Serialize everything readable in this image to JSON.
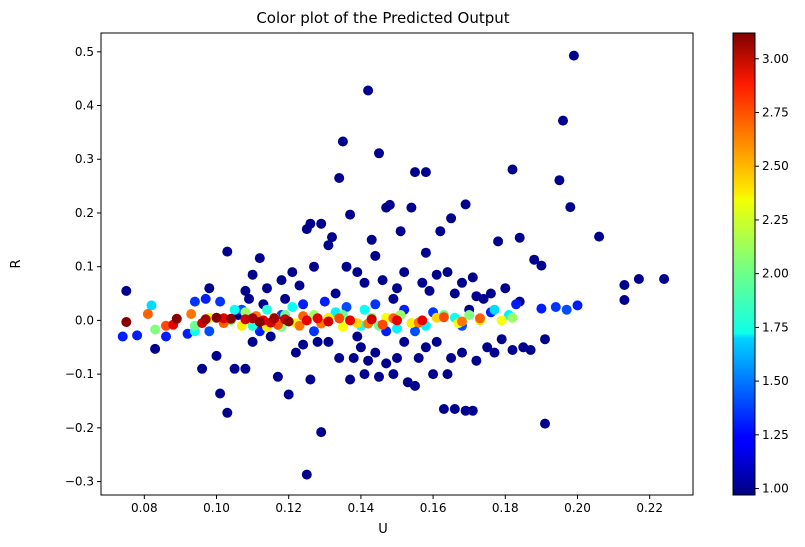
{
  "chart_data": {
    "type": "scatter",
    "title": "Color plot of the Predicted Output",
    "xlabel": "U",
    "ylabel": "R",
    "xlim": [
      0.068,
      0.232
    ],
    "ylim": [
      -0.325,
      0.535
    ],
    "xticks": [
      "0.08",
      "0.10",
      "0.12",
      "0.14",
      "0.16",
      "0.18",
      "0.20",
      "0.22"
    ],
    "yticks": [
      "-0.3",
      "-0.2",
      "-0.1",
      "0.0",
      "0.1",
      "0.2",
      "0.3",
      "0.4",
      "0.5"
    ],
    "grid": false,
    "colormap": "jet",
    "colorbar": {
      "range": [
        0.97,
        3.12
      ],
      "ticks": [
        "1.00",
        "1.25",
        "1.50",
        "1.75",
        "2.00",
        "2.25",
        "2.50",
        "2.75",
        "3.00"
      ]
    },
    "points": [
      [
        0.075,
        0.055,
        1.0
      ],
      [
        0.098,
        0.06,
        1.0
      ],
      [
        0.103,
        0.128,
        1.0
      ],
      [
        0.106,
        0.01,
        1.0
      ],
      [
        0.108,
        0.055,
        1.0
      ],
      [
        0.11,
        0.085,
        1.0
      ],
      [
        0.112,
        0.116,
        1.0
      ],
      [
        0.114,
        0.06,
        1.0
      ],
      [
        0.118,
        0.075,
        1.0
      ],
      [
        0.121,
        0.09,
        1.0
      ],
      [
        0.123,
        0.065,
        1.0
      ],
      [
        0.125,
        0.17,
        1.0
      ],
      [
        0.126,
        0.18,
        1.0
      ],
      [
        0.127,
        0.1,
        1.0
      ],
      [
        0.129,
        0.18,
        1.0
      ],
      [
        0.131,
        0.14,
        1.0
      ],
      [
        0.132,
        0.155,
        1.0
      ],
      [
        0.134,
        0.265,
        1.0
      ],
      [
        0.135,
        0.333,
        1.0
      ],
      [
        0.136,
        0.1,
        1.0
      ],
      [
        0.137,
        0.197,
        1.0
      ],
      [
        0.139,
        0.09,
        1.0
      ],
      [
        0.141,
        0.07,
        1.0
      ],
      [
        0.142,
        0.428,
        1.0
      ],
      [
        0.143,
        0.15,
        1.0
      ],
      [
        0.144,
        0.12,
        1.0
      ],
      [
        0.145,
        0.311,
        1.0
      ],
      [
        0.146,
        0.075,
        1.0
      ],
      [
        0.147,
        0.21,
        1.0
      ],
      [
        0.148,
        0.215,
        1.0
      ],
      [
        0.15,
        0.06,
        1.0
      ],
      [
        0.151,
        0.166,
        1.0
      ],
      [
        0.152,
        0.09,
        1.0
      ],
      [
        0.154,
        0.21,
        1.0
      ],
      [
        0.155,
        0.276,
        1.0
      ],
      [
        0.157,
        0.07,
        1.0
      ],
      [
        0.158,
        0.276,
        1.0
      ],
      [
        0.158,
        0.126,
        1.0
      ],
      [
        0.161,
        0.085,
        1.0
      ],
      [
        0.162,
        0.166,
        1.0
      ],
      [
        0.164,
        0.09,
        1.0
      ],
      [
        0.165,
        0.19,
        1.0
      ],
      [
        0.166,
        0.05,
        1.0
      ],
      [
        0.168,
        0.07,
        1.0
      ],
      [
        0.169,
        0.216,
        1.0
      ],
      [
        0.171,
        0.08,
        1.0
      ],
      [
        0.172,
        0.045,
        1.0
      ],
      [
        0.174,
        0.04,
        1.0
      ],
      [
        0.176,
        0.05,
        1.0
      ],
      [
        0.178,
        0.147,
        1.0
      ],
      [
        0.18,
        0.06,
        1.0
      ],
      [
        0.182,
        0.281,
        1.0
      ],
      [
        0.184,
        0.154,
        1.0
      ],
      [
        0.188,
        0.113,
        1.0
      ],
      [
        0.19,
        0.102,
        1.0
      ],
      [
        0.195,
        0.261,
        1.0
      ],
      [
        0.196,
        0.372,
        1.0
      ],
      [
        0.198,
        0.211,
        1.0
      ],
      [
        0.199,
        0.493,
        1.0
      ],
      [
        0.206,
        0.156,
        1.0
      ],
      [
        0.213,
        0.066,
        1.0
      ],
      [
        0.213,
        0.038,
        1.0
      ],
      [
        0.217,
        0.077,
        1.0
      ],
      [
        0.224,
        0.077,
        1.0
      ],
      [
        0.184,
        0.035,
        1.0
      ],
      [
        0.083,
        -0.053,
        1.0
      ],
      [
        0.096,
        -0.09,
        1.0
      ],
      [
        0.1,
        -0.066,
        1.0
      ],
      [
        0.101,
        -0.136,
        1.0
      ],
      [
        0.103,
        -0.172,
        1.0
      ],
      [
        0.105,
        -0.09,
        1.0
      ],
      [
        0.108,
        -0.09,
        1.0
      ],
      [
        0.11,
        -0.04,
        1.0
      ],
      [
        0.117,
        -0.105,
        1.0
      ],
      [
        0.12,
        -0.138,
        1.0
      ],
      [
        0.122,
        -0.06,
        1.0
      ],
      [
        0.124,
        -0.045,
        1.0
      ],
      [
        0.125,
        -0.287,
        1.0
      ],
      [
        0.126,
        -0.11,
        1.0
      ],
      [
        0.128,
        -0.04,
        1.0
      ],
      [
        0.129,
        -0.208,
        1.0
      ],
      [
        0.131,
        -0.04,
        1.0
      ],
      [
        0.134,
        -0.07,
        1.0
      ],
      [
        0.137,
        -0.11,
        1.0
      ],
      [
        0.138,
        -0.07,
        1.0
      ],
      [
        0.14,
        -0.05,
        1.0
      ],
      [
        0.141,
        -0.1,
        1.0
      ],
      [
        0.142,
        -0.075,
        1.0
      ],
      [
        0.144,
        -0.06,
        1.0
      ],
      [
        0.145,
        -0.105,
        1.0
      ],
      [
        0.147,
        -0.08,
        1.0
      ],
      [
        0.149,
        -0.1,
        1.0
      ],
      [
        0.15,
        -0.07,
        1.0
      ],
      [
        0.152,
        -0.04,
        1.0
      ],
      [
        0.153,
        -0.115,
        1.0
      ],
      [
        0.155,
        -0.122,
        1.0
      ],
      [
        0.156,
        -0.07,
        1.0
      ],
      [
        0.158,
        -0.05,
        1.0
      ],
      [
        0.16,
        -0.1,
        1.0
      ],
      [
        0.163,
        -0.165,
        1.0
      ],
      [
        0.164,
        -0.1,
        1.0
      ],
      [
        0.165,
        -0.07,
        1.0
      ],
      [
        0.166,
        -0.165,
        1.0
      ],
      [
        0.168,
        -0.06,
        1.0
      ],
      [
        0.169,
        -0.168,
        1.0
      ],
      [
        0.171,
        -0.168,
        1.0
      ],
      [
        0.172,
        -0.075,
        1.0
      ],
      [
        0.175,
        -0.05,
        1.0
      ],
      [
        0.177,
        -0.06,
        1.0
      ],
      [
        0.179,
        -0.035,
        1.0
      ],
      [
        0.182,
        -0.055,
        1.0
      ],
      [
        0.185,
        -0.05,
        1.0
      ],
      [
        0.187,
        -0.055,
        1.0
      ],
      [
        0.191,
        -0.035,
        1.0
      ],
      [
        0.191,
        -0.192,
        1.0
      ],
      [
        0.109,
        0.04,
        1.0
      ],
      [
        0.113,
        0.03,
        1.0
      ],
      [
        0.119,
        0.04,
        1.0
      ],
      [
        0.133,
        0.05,
        1.0
      ],
      [
        0.149,
        0.04,
        1.0
      ],
      [
        0.159,
        0.055,
        1.0
      ],
      [
        0.17,
        0.02,
        1.0
      ],
      [
        0.115,
        -0.03,
        1.0
      ],
      [
        0.139,
        -0.03,
        1.0
      ],
      [
        0.161,
        -0.04,
        1.0
      ],
      [
        0.074,
        -0.03,
        1.3
      ],
      [
        0.078,
        -0.028,
        1.3
      ],
      [
        0.086,
        -0.03,
        1.3
      ],
      [
        0.092,
        -0.025,
        1.3
      ],
      [
        0.094,
        0.035,
        1.35
      ],
      [
        0.097,
        0.04,
        1.3
      ],
      [
        0.101,
        0.035,
        1.35
      ],
      [
        0.107,
        0.02,
        1.4
      ],
      [
        0.118,
        0.01,
        1.35
      ],
      [
        0.124,
        0.03,
        1.3
      ],
      [
        0.13,
        0.035,
        1.3
      ],
      [
        0.136,
        0.025,
        1.4
      ],
      [
        0.144,
        0.03,
        1.35
      ],
      [
        0.152,
        0.02,
        1.3
      ],
      [
        0.16,
        0.015,
        1.35
      ],
      [
        0.168,
        -0.01,
        1.4
      ],
      [
        0.176,
        0.015,
        1.3
      ],
      [
        0.183,
        0.03,
        1.3
      ],
      [
        0.19,
        0.022,
        1.3
      ],
      [
        0.194,
        0.025,
        1.35
      ],
      [
        0.197,
        0.02,
        1.4
      ],
      [
        0.2,
        0.028,
        1.3
      ],
      [
        0.112,
        -0.02,
        1.3
      ],
      [
        0.127,
        -0.02,
        1.35
      ],
      [
        0.147,
        -0.02,
        1.3
      ],
      [
        0.098,
        -0.02,
        1.4
      ],
      [
        0.155,
        -0.02,
        1.4
      ],
      [
        0.082,
        0.028,
        1.7
      ],
      [
        0.105,
        0.02,
        1.8
      ],
      [
        0.114,
        0.02,
        1.85
      ],
      [
        0.121,
        0.025,
        1.8
      ],
      [
        0.133,
        0.015,
        1.75
      ],
      [
        0.141,
        0.02,
        1.8
      ],
      [
        0.158,
        -0.01,
        1.75
      ],
      [
        0.166,
        0.005,
        1.8
      ],
      [
        0.177,
        0.02,
        1.7
      ],
      [
        0.181,
        0.01,
        1.75
      ],
      [
        0.11,
        -0.01,
        1.85
      ],
      [
        0.14,
        -0.01,
        1.8
      ],
      [
        0.15,
        -0.015,
        1.75
      ],
      [
        0.094,
        -0.02,
        1.8
      ],
      [
        0.083,
        -0.017,
        2.05
      ],
      [
        0.094,
        -0.01,
        2.0
      ],
      [
        0.104,
        0.0,
        2.05
      ],
      [
        0.108,
        0.015,
        2.1
      ],
      [
        0.119,
        0.01,
        2.0
      ],
      [
        0.127,
        0.01,
        2.1
      ],
      [
        0.135,
        0.01,
        2.0
      ],
      [
        0.143,
        0.005,
        2.05
      ],
      [
        0.151,
        0.01,
        2.1
      ],
      [
        0.163,
        0.01,
        2.0
      ],
      [
        0.17,
        0.01,
        2.05
      ],
      [
        0.182,
        0.005,
        2.1
      ],
      [
        0.145,
        -0.01,
        2.0
      ],
      [
        0.118,
        -0.012,
        2.05
      ],
      [
        0.098,
        0.005,
        2.3
      ],
      [
        0.107,
        -0.01,
        2.35
      ],
      [
        0.116,
        0.005,
        2.4
      ],
      [
        0.122,
        -0.005,
        2.3
      ],
      [
        0.131,
        0.005,
        2.35
      ],
      [
        0.139,
        -0.005,
        2.4
      ],
      [
        0.147,
        0.005,
        2.3
      ],
      [
        0.154,
        -0.005,
        2.35
      ],
      [
        0.161,
        0.005,
        2.4
      ],
      [
        0.167,
        -0.005,
        2.3
      ],
      [
        0.173,
        0.0,
        2.35
      ],
      [
        0.179,
        0.0,
        2.3
      ],
      [
        0.114,
        -0.012,
        2.35
      ],
      [
        0.135,
        -0.012,
        2.3
      ],
      [
        0.081,
        0.012,
        2.65
      ],
      [
        0.086,
        -0.01,
        2.7
      ],
      [
        0.093,
        0.012,
        2.6
      ],
      [
        0.102,
        -0.005,
        2.65
      ],
      [
        0.111,
        0.008,
        2.6
      ],
      [
        0.117,
        -0.008,
        2.7
      ],
      [
        0.124,
        0.008,
        2.65
      ],
      [
        0.129,
        -0.006,
        2.6
      ],
      [
        0.134,
        0.004,
        2.7
      ],
      [
        0.142,
        -0.006,
        2.6
      ],
      [
        0.149,
        0.004,
        2.65
      ],
      [
        0.156,
        -0.004,
        2.6
      ],
      [
        0.163,
        0.006,
        2.7
      ],
      [
        0.168,
        -0.002,
        2.6
      ],
      [
        0.173,
        0.004,
        2.65
      ],
      [
        0.123,
        -0.01,
        2.6
      ],
      [
        0.146,
        -0.008,
        2.7
      ],
      [
        0.088,
        -0.008,
        2.9
      ],
      [
        0.096,
        -0.005,
        2.95
      ],
      [
        0.102,
        0.004,
        2.9
      ],
      [
        0.108,
        0.002,
        2.95
      ],
      [
        0.113,
        0.0,
        2.9
      ],
      [
        0.119,
        0.002,
        2.95
      ],
      [
        0.125,
        0.0,
        2.9
      ],
      [
        0.131,
        -0.002,
        2.95
      ],
      [
        0.137,
        0.0,
        2.9
      ],
      [
        0.143,
        0.002,
        2.95
      ],
      [
        0.15,
        0.0,
        2.9
      ],
      [
        0.157,
        0.0,
        2.9
      ],
      [
        0.115,
        -0.004,
        2.95
      ],
      [
        0.128,
        0.004,
        2.9
      ],
      [
        0.075,
        -0.003,
        3.1
      ],
      [
        0.089,
        0.003,
        3.1
      ],
      [
        0.097,
        0.002,
        3.05
      ],
      [
        0.1,
        0.005,
        3.1
      ],
      [
        0.104,
        0.003,
        3.1
      ],
      [
        0.11,
        0.004,
        3.05
      ],
      [
        0.112,
        -0.003,
        3.1
      ],
      [
        0.116,
        0.004,
        3.05
      ],
      [
        0.12,
        -0.002,
        3.1
      ]
    ]
  }
}
